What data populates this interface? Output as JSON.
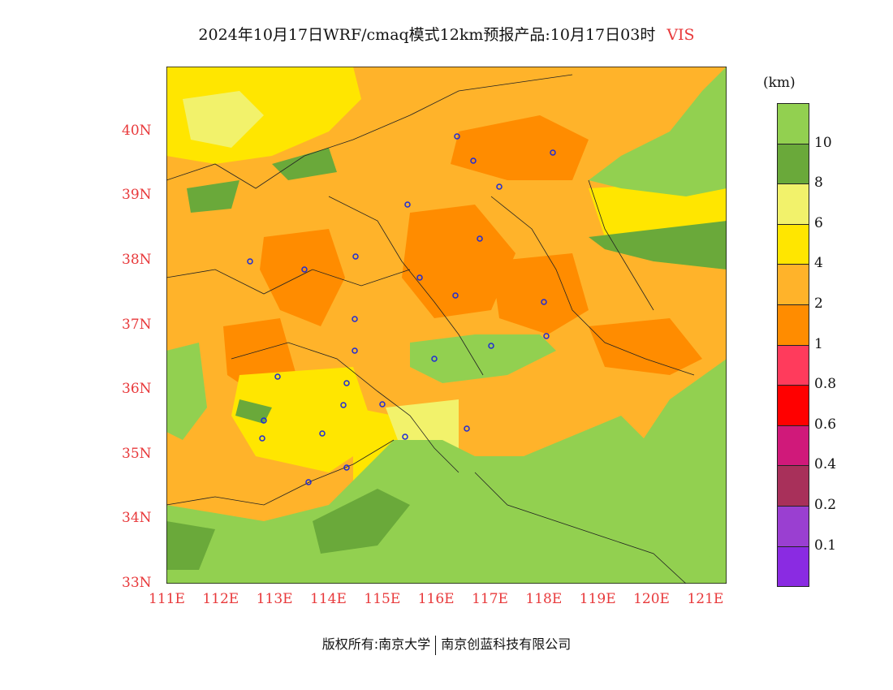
{
  "title": {
    "text": "2024年10月17日WRF/cmaq模式12km预报产品:10月17日03时",
    "variable": "VIS"
  },
  "axes": {
    "lat_labels": [
      "33N",
      "34N",
      "35N",
      "36N",
      "37N",
      "38N",
      "39N",
      "40N"
    ],
    "lon_labels": [
      "111E",
      "112E",
      "113E",
      "114E",
      "115E",
      "116E",
      "117E",
      "118E",
      "119E",
      "120E",
      "121E"
    ],
    "lat_range": [
      33,
      41
    ],
    "lon_range": [
      111,
      121.4
    ]
  },
  "colorbar": {
    "unit": "(km)",
    "ticks": [
      "10",
      "8",
      "6",
      "4",
      "2",
      "1",
      "0.8",
      "0.6",
      "0.4",
      "0.2",
      "0.1"
    ],
    "colors": [
      "#92d050",
      "#6aa93a",
      "#f2f26b",
      "#ffe600",
      "#ffb32a",
      "#ff8c00",
      "#ff3b5c",
      "#ff0000",
      "#d0197a",
      "#a8305a",
      "#9a3fd1",
      "#8a2be2"
    ]
  },
  "footer": {
    "left": "版权所有:南京大学",
    "right": "南京创蓝科技有限公司"
  }
}
